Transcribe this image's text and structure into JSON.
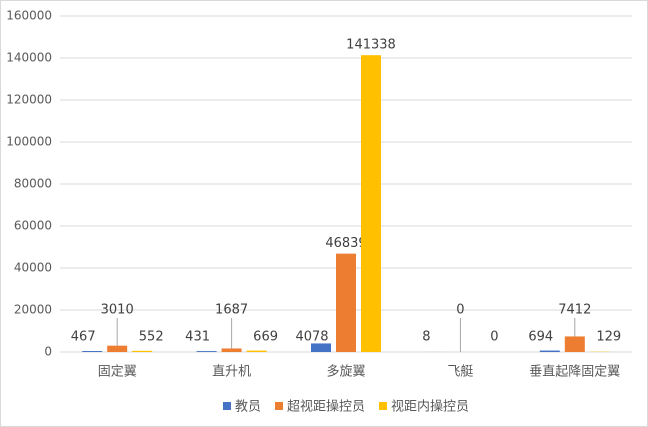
{
  "chart_data": {
    "type": "bar",
    "categories": [
      "固定翼",
      "直升机",
      "多旋翼",
      "飞艇",
      "垂直起降固定翼"
    ],
    "series": [
      {
        "name": "教员",
        "color": "#4472c4",
        "values": [
          467,
          431,
          4078,
          8,
          694
        ]
      },
      {
        "name": "超视距操控员",
        "color": "#ed7d31",
        "values": [
          3010,
          1687,
          46839,
          0,
          7412
        ]
      },
      {
        "name": "视距内操控员",
        "color": "#ffc000",
        "values": [
          552,
          669,
          141338,
          0,
          129
        ]
      }
    ],
    "ylim": [
      0,
      160000
    ],
    "yticks": [
      0,
      20000,
      40000,
      60000,
      80000,
      100000,
      120000,
      140000,
      160000
    ],
    "grid": true,
    "legend": "bottom"
  }
}
